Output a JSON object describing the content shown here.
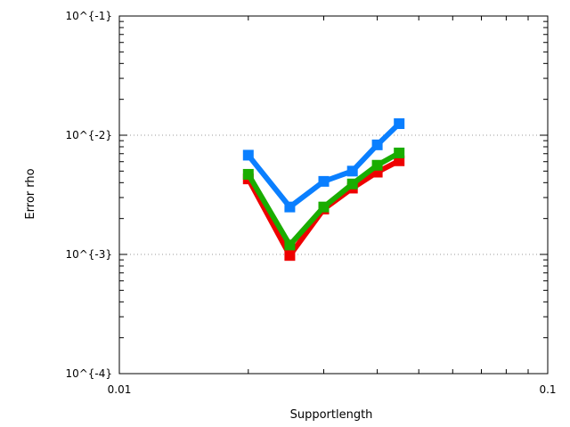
{
  "chart_data": {
    "type": "line",
    "title": "",
    "xlabel": "Supportlength",
    "ylabel": "Error rho",
    "x_scale": "log",
    "y_scale": "log",
    "xlim": [
      0.01,
      0.1
    ],
    "ylim": [
      0.0001,
      0.1
    ],
    "x_ticks": [
      {
        "value": 0.01,
        "label": "0.01"
      },
      {
        "value": 0.1,
        "label": "0.1"
      }
    ],
    "y_ticks": [
      {
        "value": 0.0001,
        "label": "10^{-4}"
      },
      {
        "value": 0.001,
        "label": "10^{-3}"
      },
      {
        "value": 0.01,
        "label": "10^{-2}"
      },
      {
        "value": 0.1,
        "label": "10^{-1}"
      }
    ],
    "grid": "horizontal dotted at major y ticks",
    "legend": "none",
    "series": [
      {
        "color": "#ee0000",
        "marker": "square",
        "points": [
          [
            0.02,
            0.0043
          ],
          [
            0.025,
            0.00098
          ],
          [
            0.03,
            0.0024
          ],
          [
            0.035,
            0.0036
          ],
          [
            0.04,
            0.0049
          ],
          [
            0.045,
            0.0061
          ]
        ]
      },
      {
        "color": "#1aad00",
        "marker": "square",
        "points": [
          [
            0.02,
            0.0047
          ],
          [
            0.025,
            0.0012
          ],
          [
            0.03,
            0.0025
          ],
          [
            0.035,
            0.0039
          ],
          [
            0.04,
            0.0056
          ],
          [
            0.045,
            0.0071
          ]
        ]
      },
      {
        "color": "#0a7fff",
        "marker": "square",
        "points": [
          [
            0.02,
            0.0068
          ],
          [
            0.025,
            0.0025
          ],
          [
            0.03,
            0.0041
          ],
          [
            0.035,
            0.005
          ],
          [
            0.04,
            0.0083
          ],
          [
            0.045,
            0.0125
          ]
        ]
      }
    ]
  }
}
